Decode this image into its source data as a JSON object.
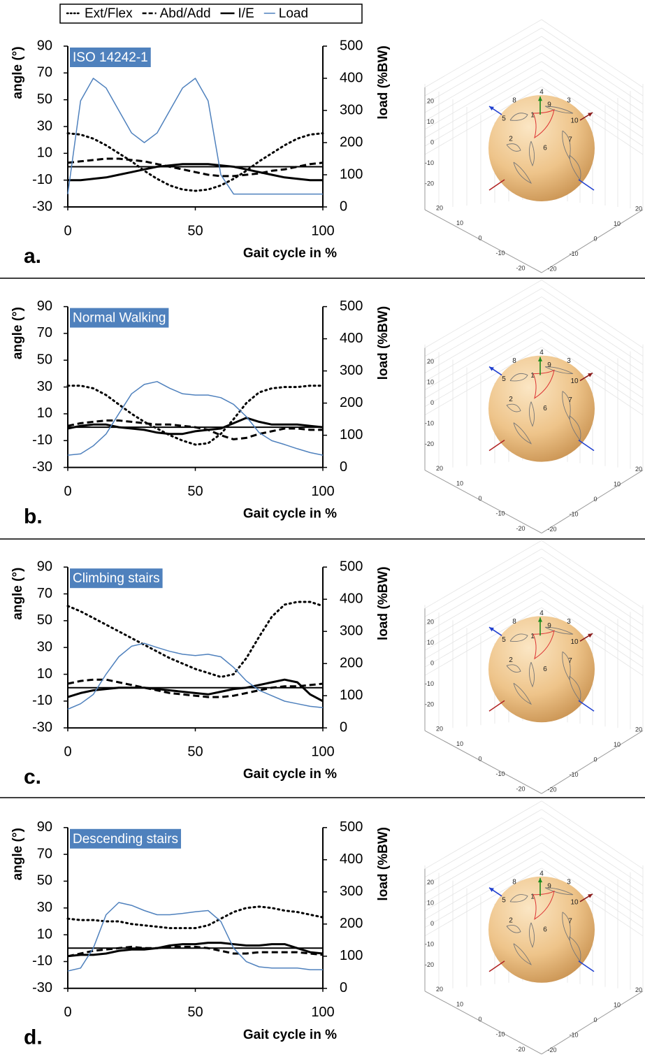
{
  "legend": {
    "position": "top"
  },
  "sphere_plot": {
    "axis_ticks": [
      20,
      10,
      0,
      -10,
      -20
    ],
    "points": [
      1,
      2,
      3,
      4,
      5,
      6,
      7,
      8,
      9,
      10
    ]
  },
  "chart_data": [
    {
      "type": "line",
      "panel_label": "a.",
      "title": "ISO 14242-1",
      "xlabel": "Gait cycle in %",
      "ylabel": "angle (°)",
      "y2label": "load (%BW)",
      "xlim": [
        0,
        100
      ],
      "xticks": [
        0,
        50,
        100
      ],
      "ylim": [
        -30,
        90
      ],
      "yticks": [
        -30,
        -10,
        10,
        30,
        50,
        70,
        90
      ],
      "y2lim": [
        0,
        500
      ],
      "y2ticks": [
        0,
        100,
        200,
        300,
        400,
        500
      ],
      "hline": 0,
      "x": [
        0,
        5,
        10,
        15,
        20,
        25,
        30,
        35,
        40,
        45,
        50,
        55,
        60,
        65,
        70,
        75,
        80,
        85,
        90,
        95,
        100
      ],
      "series": [
        {
          "name": "Ext/Flex",
          "color": "#000000",
          "style": "dotted",
          "values": [
            25,
            24,
            21,
            16,
            10,
            4,
            -3,
            -9,
            -14,
            -17,
            -18,
            -17,
            -14,
            -9,
            -3,
            4,
            10,
            16,
            21,
            24,
            25
          ]
        },
        {
          "name": "Abd/Add",
          "color": "#000000",
          "style": "dashed",
          "values": [
            3,
            4,
            5,
            6,
            6,
            5,
            4,
            2,
            0,
            -2,
            -4,
            -6,
            -7,
            -7,
            -6,
            -5,
            -3,
            -2,
            0,
            2,
            3
          ]
        },
        {
          "name": "I/E",
          "color": "#000000",
          "style": "solid",
          "values": [
            -10,
            -10,
            -9,
            -8,
            -6,
            -4,
            -2,
            0,
            1,
            2,
            2,
            2,
            1,
            0,
            -2,
            -4,
            -6,
            -8,
            -9,
            -10,
            -10
          ]
        },
        {
          "name": "Load",
          "color": "#4f81bd",
          "style": "thin",
          "axis": "y2",
          "values": [
            40,
            330,
            400,
            370,
            300,
            230,
            200,
            230,
            300,
            370,
            400,
            330,
            100,
            40,
            40,
            40,
            40,
            40,
            40,
            40,
            40
          ]
        }
      ]
    },
    {
      "type": "line",
      "panel_label": "b.",
      "title": "Normal Walking",
      "xlabel": "Gait cycle in %",
      "ylabel": "angle (°)",
      "y2label": "load (%BW)",
      "xlim": [
        0,
        100
      ],
      "xticks": [
        0,
        50,
        100
      ],
      "ylim": [
        -30,
        90
      ],
      "yticks": [
        -30,
        -10,
        10,
        30,
        50,
        70,
        90
      ],
      "y2lim": [
        0,
        500
      ],
      "y2ticks": [
        0,
        100,
        200,
        300,
        400,
        500
      ],
      "hline": 0,
      "x": [
        0,
        5,
        10,
        15,
        20,
        25,
        30,
        35,
        40,
        45,
        50,
        55,
        60,
        65,
        70,
        75,
        80,
        85,
        90,
        95,
        100
      ],
      "series": [
        {
          "name": "Ext/Flex",
          "color": "#000000",
          "style": "dotted",
          "values": [
            31,
            31,
            29,
            24,
            17,
            10,
            4,
            -1,
            -6,
            -10,
            -13,
            -12,
            -5,
            6,
            18,
            26,
            29,
            30,
            30,
            31,
            31
          ]
        },
        {
          "name": "Abd/Add",
          "color": "#000000",
          "style": "dashed",
          "values": [
            1,
            3,
            4,
            5,
            5,
            4,
            3,
            2,
            2,
            1,
            0,
            -2,
            -6,
            -9,
            -8,
            -5,
            -3,
            -1,
            -1,
            -2,
            -2
          ]
        },
        {
          "name": "I/E",
          "color": "#000000",
          "style": "solid",
          "values": [
            -1,
            1,
            2,
            2,
            0,
            -1,
            -2,
            -4,
            -5,
            -5,
            -3,
            -2,
            -1,
            3,
            7,
            4,
            2,
            2,
            2,
            1,
            0
          ]
        },
        {
          "name": "Load",
          "color": "#4f81bd",
          "style": "thin",
          "axis": "y2",
          "values": [
            38,
            42,
            67,
            104,
            167,
            229,
            258,
            267,
            246,
            229,
            225,
            225,
            217,
            196,
            158,
            108,
            83,
            71,
            58,
            46,
            38
          ]
        }
      ]
    },
    {
      "type": "line",
      "panel_label": "c.",
      "title": "Climbing stairs",
      "xlabel": "Gait cycle in %",
      "ylabel": "angle (°)",
      "y2label": "load (%BW)",
      "xlim": [
        0,
        100
      ],
      "xticks": [
        0,
        50,
        100
      ],
      "ylim": [
        -30,
        90
      ],
      "yticks": [
        -30,
        -10,
        10,
        30,
        50,
        70,
        90
      ],
      "y2lim": [
        0,
        500
      ],
      "y2ticks": [
        0,
        100,
        200,
        300,
        400,
        500
      ],
      "hline": 0,
      "x": [
        0,
        5,
        10,
        15,
        20,
        25,
        30,
        35,
        40,
        45,
        50,
        55,
        60,
        65,
        70,
        75,
        80,
        85,
        90,
        95,
        100
      ],
      "series": [
        {
          "name": "Ext/Flex",
          "color": "#000000",
          "style": "dotted",
          "values": [
            61,
            57,
            52,
            47,
            42,
            37,
            32,
            27,
            22,
            18,
            14,
            11,
            8,
            10,
            22,
            38,
            53,
            62,
            64,
            64,
            61
          ]
        },
        {
          "name": "Abd/Add",
          "color": "#000000",
          "style": "dashed",
          "values": [
            3,
            5,
            6,
            6,
            4,
            2,
            0,
            -2,
            -4,
            -5,
            -6,
            -7,
            -7,
            -6,
            -4,
            -2,
            0,
            1,
            1,
            2,
            3
          ]
        },
        {
          "name": "I/E",
          "color": "#000000",
          "style": "solid",
          "values": [
            -7,
            -4,
            -2,
            -1,
            0,
            0,
            0,
            -1,
            -2,
            -3,
            -4,
            -5,
            -3,
            -1,
            0,
            2,
            4,
            6,
            4,
            -5,
            -10
          ]
        },
        {
          "name": "Load",
          "color": "#4f81bd",
          "style": "thin",
          "axis": "y2",
          "values": [
            58,
            75,
            104,
            167,
            221,
            254,
            263,
            250,
            238,
            229,
            225,
            229,
            221,
            188,
            146,
            117,
            100,
            83,
            75,
            67,
            63
          ]
        }
      ]
    },
    {
      "type": "line",
      "panel_label": "d.",
      "title": "Descending stairs",
      "xlabel": "Gait cycle in %",
      "ylabel": "angle (°)",
      "y2label": "load (%BW)",
      "xlim": [
        0,
        100
      ],
      "xticks": [
        0,
        50,
        100
      ],
      "ylim": [
        -30,
        90
      ],
      "yticks": [
        -30,
        -10,
        10,
        30,
        50,
        70,
        90
      ],
      "y2lim": [
        0,
        500
      ],
      "y2ticks": [
        0,
        100,
        200,
        300,
        400,
        500
      ],
      "hline": 0,
      "x": [
        0,
        5,
        10,
        15,
        20,
        25,
        30,
        35,
        40,
        45,
        50,
        55,
        60,
        65,
        70,
        75,
        80,
        85,
        90,
        95,
        100
      ],
      "series": [
        {
          "name": "Ext/Flex",
          "color": "#000000",
          "style": "dotted",
          "values": [
            22,
            21,
            21,
            20,
            20,
            18,
            17,
            16,
            15,
            15,
            15,
            17,
            22,
            27,
            30,
            31,
            30,
            28,
            27,
            25,
            23
          ]
        },
        {
          "name": "Abd/Add",
          "color": "#000000",
          "style": "dashed",
          "values": [
            -6,
            -4,
            -2,
            -1,
            0,
            1,
            0,
            0,
            1,
            1,
            1,
            0,
            -2,
            -4,
            -4,
            -3,
            -3,
            -3,
            -3,
            -4,
            -5
          ]
        },
        {
          "name": "I/E",
          "color": "#000000",
          "style": "solid",
          "values": [
            -6,
            -5,
            -5,
            -4,
            -2,
            -1,
            -1,
            0,
            2,
            3,
            3,
            4,
            4,
            3,
            2,
            2,
            3,
            3,
            0,
            -3,
            -4
          ]
        },
        {
          "name": "Load",
          "color": "#4f81bd",
          "style": "thin",
          "axis": "y2",
          "values": [
            54,
            63,
            125,
            229,
            267,
            258,
            242,
            229,
            229,
            233,
            238,
            242,
            208,
            125,
            83,
            67,
            63,
            63,
            63,
            58,
            58
          ]
        }
      ]
    }
  ]
}
